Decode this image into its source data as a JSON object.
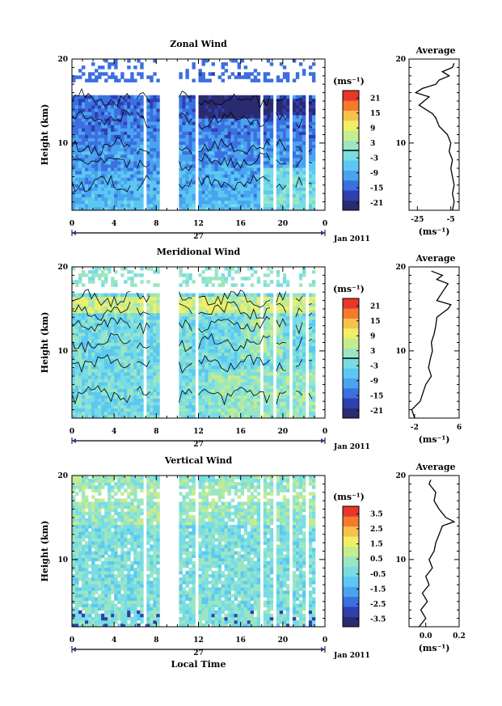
{
  "colors": {
    "colorscale": [
      "#2a2a6e",
      "#2f3fb0",
      "#3c6fe0",
      "#4aa3f0",
      "#5cc8f2",
      "#77dce6",
      "#9be6c2",
      "#c5ec8e",
      "#eff06a",
      "#f8c24a",
      "#f47a2e",
      "#e8362b"
    ],
    "masked": "#ffffff",
    "line": "#000000"
  },
  "chart_data": [
    {
      "type": "heatmap",
      "title": "Zonal Wind",
      "ylabel": "Height (km)",
      "ylim": [
        2,
        20
      ],
      "yticks": [
        "20",
        "10"
      ],
      "xlim": [
        0,
        24
      ],
      "xticks": [
        "0",
        "4",
        "8",
        "12",
        "16",
        "20",
        "0"
      ],
      "date_tick": "27",
      "date_label": "Jan 2011",
      "unit": "(ms⁻¹)",
      "colorbar_ticks": [
        "21",
        "15",
        "9",
        "3",
        "-3",
        "-9",
        "-15",
        "-21"
      ],
      "colorbar_range": [
        -24,
        24
      ],
      "contour_level": 0,
      "average": {
        "title": "Average",
        "unit": "(ms⁻¹)",
        "xlim": [
          -30,
          0
        ],
        "xticks": [
          "-25",
          "-5"
        ],
        "yticks": [
          "20",
          "10"
        ],
        "height": [
          2,
          3,
          4,
          5,
          6,
          7,
          8,
          9,
          10,
          11,
          12,
          13,
          13.5,
          14,
          14.5,
          15,
          15.5,
          16,
          16.5,
          17,
          17.5,
          18,
          18.5,
          19,
          19.5
        ],
        "values": [
          -4,
          -3,
          -4,
          -3,
          -4,
          -5,
          -4,
          -6,
          -5,
          -7,
          -12,
          -14,
          -16,
          -20,
          -24,
          -21,
          -18,
          -26,
          -22,
          -14,
          -12,
          -6,
          -10,
          -4,
          -3
        ]
      }
    },
    {
      "type": "heatmap",
      "title": "Meridional Wind",
      "ylabel": "Height (km)",
      "ylim": [
        2,
        20
      ],
      "yticks": [
        "20",
        "10"
      ],
      "xlim": [
        0,
        24
      ],
      "xticks": [
        "0",
        "4",
        "8",
        "12",
        "16",
        "20",
        "0"
      ],
      "date_tick": "27",
      "date_label": "Jan 2011",
      "unit": "(ms⁻¹)",
      "colorbar_ticks": [
        "21",
        "15",
        "9",
        "3",
        "-3",
        "-9",
        "-15",
        "-21"
      ],
      "colorbar_range": [
        -24,
        24
      ],
      "contour_level": 0,
      "average": {
        "title": "Average",
        "unit": "(ms⁻¹)",
        "xlim": [
          -3,
          6
        ],
        "xticks": [
          "-2",
          "6"
        ],
        "yticks": [
          "20",
          "10"
        ],
        "height": [
          2,
          3,
          4,
          5,
          6,
          7,
          8,
          9,
          10,
          11,
          12,
          13,
          14,
          14.5,
          15,
          15.5,
          16,
          17,
          18,
          18.5,
          19,
          19.5
        ],
        "values": [
          -2,
          -2.5,
          -1,
          -0.5,
          0,
          1,
          0.5,
          0.8,
          1.2,
          1,
          1.5,
          1.8,
          2,
          3,
          4,
          4.5,
          2,
          3,
          4,
          2,
          3,
          1
        ]
      }
    },
    {
      "type": "heatmap",
      "title": "Vertical Wind",
      "ylabel": "Height (km)",
      "xlabel": "Local Time",
      "ylim": [
        2,
        20
      ],
      "yticks": [
        "20",
        "10"
      ],
      "xlim": [
        0,
        24
      ],
      "xticks": [
        "0",
        "4",
        "8",
        "12",
        "16",
        "20",
        "0"
      ],
      "date_tick": "27",
      "date_label": "Jan 2011",
      "unit": "(ms⁻¹)",
      "colorbar_ticks": [
        "3.5",
        "2.5",
        "1.5",
        "0.5",
        "-0.5",
        "-1.5",
        "-2.5",
        "-3.5"
      ],
      "colorbar_range": [
        -4,
        4
      ],
      "average": {
        "title": "Average",
        "unit": "(ms⁻¹)",
        "xlim": [
          -0.1,
          0.2
        ],
        "xticks": [
          "0.0",
          "0.2"
        ],
        "yticks": [
          "20",
          "10"
        ],
        "height": [
          2,
          3,
          4,
          5,
          6,
          7,
          8,
          9,
          10,
          11,
          12,
          13,
          14,
          14.5,
          15,
          16,
          17,
          18,
          19,
          19.5
        ],
        "values": [
          -0.04,
          0.0,
          -0.03,
          0.01,
          -0.02,
          0.02,
          0.0,
          0.04,
          0.02,
          0.05,
          0.06,
          0.08,
          0.1,
          0.17,
          0.12,
          0.08,
          0.05,
          0.06,
          0.02,
          0.03
        ]
      }
    }
  ]
}
